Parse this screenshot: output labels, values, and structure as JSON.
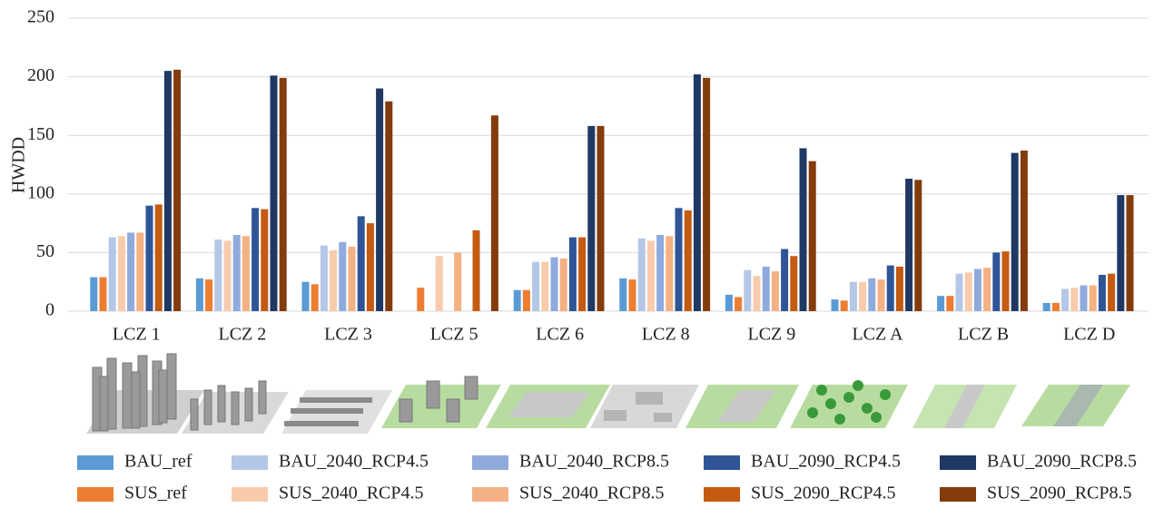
{
  "chart_data": {
    "type": "bar",
    "y_label": "HWDD",
    "categories": [
      "LCZ 1",
      "LCZ 2",
      "LCZ 3",
      "LCZ 5",
      "LCZ 6",
      "LCZ 8",
      "LCZ 9",
      "LCZ A",
      "LCZ B",
      "LCZ D"
    ],
    "series": [
      {
        "name": "BAU_ref",
        "color": "#5b9bd5",
        "values": [
          29,
          28,
          25,
          null,
          18,
          28,
          14,
          10,
          13,
          7
        ]
      },
      {
        "name": "BAU_2040_RCP4.5",
        "color": "#b4c7e7",
        "values": [
          63,
          61,
          56,
          null,
          42,
          62,
          35,
          25,
          32,
          19
        ]
      },
      {
        "name": "BAU_2040_RCP8.5",
        "color": "#8faadc",
        "values": [
          67,
          65,
          59,
          null,
          46,
          65,
          38,
          28,
          36,
          22
        ]
      },
      {
        "name": "BAU_2090_RCP4.5",
        "color": "#2f5597",
        "values": [
          90,
          88,
          81,
          null,
          63,
          88,
          53,
          39,
          50,
          31
        ]
      },
      {
        "name": "BAU_2090_RCP8.5",
        "color": "#1f3864",
        "values": [
          205,
          201,
          190,
          null,
          158,
          202,
          139,
          113,
          135,
          99
        ]
      },
      {
        "name": "SUS_ref",
        "color": "#ed7d31",
        "values": [
          29,
          27,
          23,
          20,
          18,
          27,
          12,
          9,
          13,
          7
        ]
      },
      {
        "name": "SUS_2040_RCP4.5",
        "color": "#f8cbad",
        "values": [
          64,
          60,
          52,
          47,
          42,
          60,
          30,
          25,
          33,
          20
        ]
      },
      {
        "name": "SUS_2040_RCP8.5",
        "color": "#f4b183",
        "values": [
          67,
          64,
          55,
          50,
          45,
          64,
          34,
          27,
          37,
          22
        ]
      },
      {
        "name": "SUS_2090_RCP4.5",
        "color": "#c55a11",
        "values": [
          91,
          87,
          75,
          69,
          63,
          86,
          47,
          38,
          51,
          32
        ]
      },
      {
        "name": "SUS_2090_RCP8.5",
        "color": "#843c0c",
        "values": [
          206,
          199,
          179,
          167,
          158,
          199,
          128,
          112,
          137,
          99
        ]
      }
    ],
    "ylim": [
      0,
      250
    ],
    "yticks": [
      0,
      50,
      100,
      150,
      200,
      250
    ],
    "grid": true
  }
}
